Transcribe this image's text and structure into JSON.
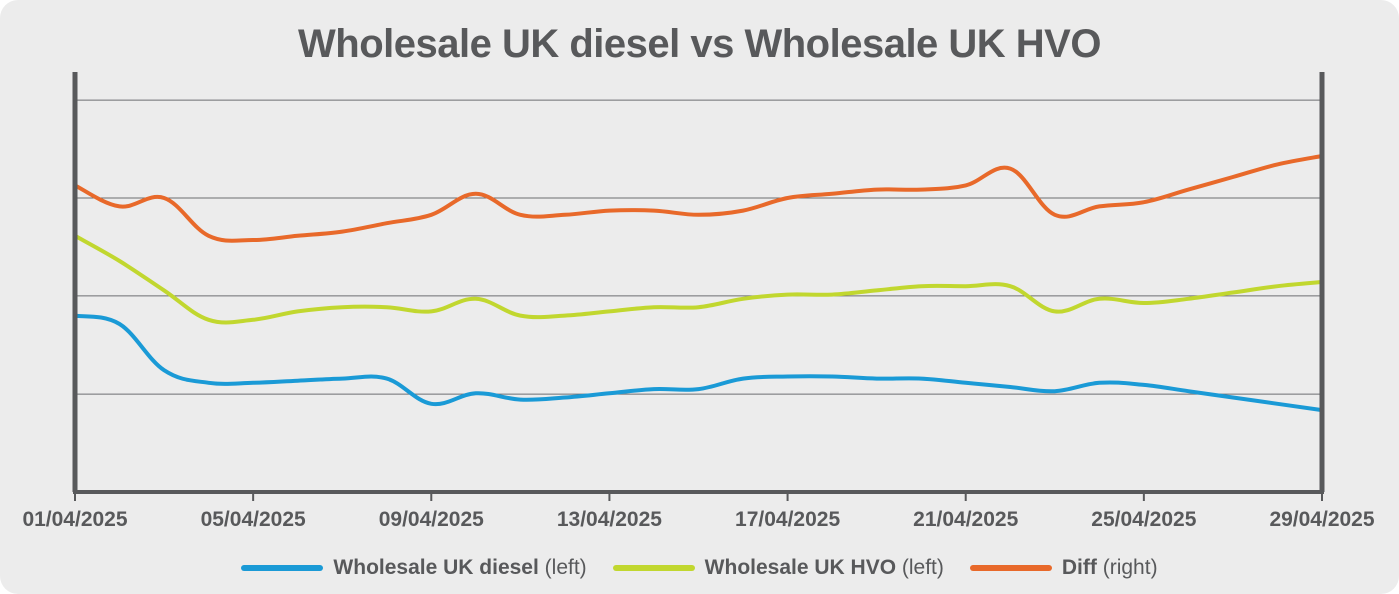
{
  "chart_data": {
    "type": "line",
    "title": "Wholesale UK diesel vs Wholesale UK HVO",
    "x_axis": {
      "type": "date",
      "min": "2025-04-01",
      "max": "2025-04-29",
      "tick_labels": [
        "01/04/2025",
        "05/04/2025",
        "09/04/2025",
        "13/04/2025",
        "17/04/2025",
        "21/04/2025",
        "25/04/2025",
        "29/04/2025"
      ],
      "tick_dates": [
        "2025-04-01",
        "2025-04-05",
        "2025-04-09",
        "2025-04-13",
        "2025-04-17",
        "2025-04-21",
        "2025-04-25",
        "2025-04-29"
      ]
    },
    "y_axis_left": {
      "tick_labels_shown": false,
      "range_fraction": [
        0,
        1
      ]
    },
    "y_axis_right": {
      "tick_labels_shown": false,
      "range_fraction": [
        0,
        1
      ]
    },
    "gridlines": "horizontal",
    "legend_position": "bottom",
    "series": [
      {
        "name": "Wholesale UK diesel",
        "axis_note": "(left)",
        "axis": "left",
        "color": "#1a9ad6",
        "x": [
          "2025-04-01",
          "2025-04-02",
          "2025-04-03",
          "2025-04-04",
          "2025-04-05",
          "2025-04-06",
          "2025-04-07",
          "2025-04-08",
          "2025-04-09",
          "2025-04-10",
          "2025-04-11",
          "2025-04-12",
          "2025-04-13",
          "2025-04-14",
          "2025-04-15",
          "2025-04-16",
          "2025-04-17",
          "2025-04-18",
          "2025-04-19",
          "2025-04-20",
          "2025-04-21",
          "2025-04-22",
          "2025-04-23",
          "2025-04-24",
          "2025-04-25",
          "2025-04-26",
          "2025-04-27",
          "2025-04-28",
          "2025-04-29"
        ],
        "values": [
          0.42,
          0.4,
          0.29,
          0.26,
          0.26,
          0.265,
          0.27,
          0.27,
          0.21,
          0.235,
          0.22,
          0.225,
          0.235,
          0.245,
          0.245,
          0.27,
          0.275,
          0.275,
          0.27,
          0.27,
          0.26,
          0.25,
          0.24,
          0.26,
          0.255,
          0.24,
          0.225,
          0.21,
          0.195
        ]
      },
      {
        "name": "Wholesale UK HVO",
        "axis_note": "(left)",
        "axis": "left",
        "color": "#c1d72f",
        "x": [
          "2025-04-01",
          "2025-04-02",
          "2025-04-03",
          "2025-04-04",
          "2025-04-05",
          "2025-04-06",
          "2025-04-07",
          "2025-04-08",
          "2025-04-09",
          "2025-04-10",
          "2025-04-11",
          "2025-04-12",
          "2025-04-13",
          "2025-04-14",
          "2025-04-15",
          "2025-04-16",
          "2025-04-17",
          "2025-04-18",
          "2025-04-19",
          "2025-04-20",
          "2025-04-21",
          "2025-04-22",
          "2025-04-23",
          "2025-04-24",
          "2025-04-25",
          "2025-04-26",
          "2025-04-27",
          "2025-04-28",
          "2025-04-29"
        ],
        "values": [
          0.61,
          0.55,
          0.48,
          0.41,
          0.41,
          0.43,
          0.44,
          0.44,
          0.43,
          0.46,
          0.42,
          0.42,
          0.43,
          0.44,
          0.44,
          0.46,
          0.47,
          0.47,
          0.48,
          0.49,
          0.49,
          0.49,
          0.43,
          0.46,
          0.45,
          0.46,
          0.475,
          0.49,
          0.5
        ]
      },
      {
        "name": "Diff",
        "axis_note": "(right)",
        "axis": "right",
        "color": "#e8692a",
        "x": [
          "2025-04-01",
          "2025-04-02",
          "2025-04-03",
          "2025-04-04",
          "2025-04-05",
          "2025-04-06",
          "2025-04-07",
          "2025-04-08",
          "2025-04-09",
          "2025-04-10",
          "2025-04-11",
          "2025-04-12",
          "2025-04-13",
          "2025-04-14",
          "2025-04-15",
          "2025-04-16",
          "2025-04-17",
          "2025-04-18",
          "2025-04-19",
          "2025-04-20",
          "2025-04-21",
          "2025-04-22",
          "2025-04-23",
          "2025-04-24",
          "2025-04-25",
          "2025-04-26",
          "2025-04-27",
          "2025-04-28",
          "2025-04-29"
        ],
        "values": [
          0.73,
          0.68,
          0.7,
          0.61,
          0.6,
          0.61,
          0.62,
          0.64,
          0.66,
          0.71,
          0.66,
          0.66,
          0.67,
          0.67,
          0.66,
          0.67,
          0.7,
          0.71,
          0.72,
          0.72,
          0.73,
          0.77,
          0.66,
          0.68,
          0.69,
          0.72,
          0.75,
          0.78,
          0.8
        ]
      }
    ]
  }
}
